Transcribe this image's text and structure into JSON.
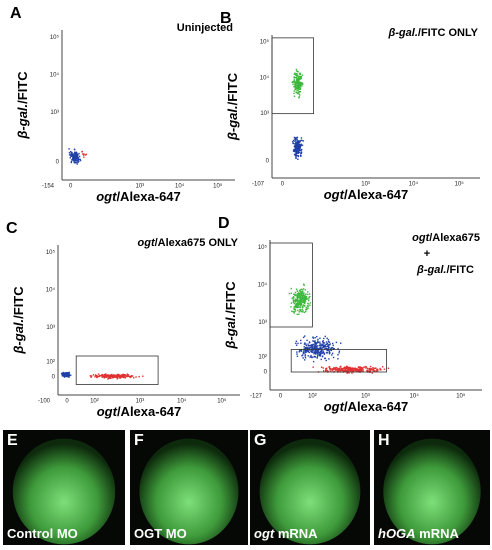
{
  "panels": [
    {
      "letter": "A",
      "title": [
        {
          "text": "Uninjected",
          "italic": false
        }
      ],
      "y_label": {
        "italic": "β-gal.",
        "rest": "/FITC"
      },
      "x_label": {
        "italic": "ogt",
        "rest": "/Alexa-647"
      },
      "yticks": [
        "10⁵",
        "10⁴",
        "10³",
        "0"
      ],
      "xticks": [
        "0",
        "10³",
        "10⁴",
        "10⁵"
      ],
      "corner": "-154"
    },
    {
      "letter": "B",
      "title": [
        {
          "text": "β-gal.",
          "italic": true
        },
        {
          "text": "/FITC ONLY",
          "italic": false
        }
      ],
      "y_label": {
        "italic": "β-gal.",
        "rest": "/FITC"
      },
      "x_label": {
        "italic": "ogt",
        "rest": "/Alexa-647"
      },
      "yticks": [
        "10⁵",
        "10⁴",
        "10³",
        "0"
      ],
      "xticks": [
        "0",
        "10³",
        "10⁴",
        "10⁵"
      ],
      "corner": "-107"
    },
    {
      "letter": "C",
      "title": [
        {
          "text": "ogt",
          "italic": true
        },
        {
          "text": "/Alexa675 ONLY",
          "italic": false
        }
      ],
      "y_label": {
        "italic": "β-gal.",
        "rest": "/FITC"
      },
      "x_label": {
        "italic": "ogt",
        "rest": "/Alexa-647"
      },
      "yticks": [
        "10⁵",
        "10⁴",
        "10³",
        "10²",
        "0"
      ],
      "xticks": [
        "0",
        "10²",
        "10³",
        "10⁴",
        "10⁵"
      ],
      "corner": "-100"
    },
    {
      "letter": "D",
      "title": [
        {
          "text": "ogt",
          "italic": true
        },
        {
          "text": "/Alexa675",
          "italic": false
        }
      ],
      "title2": "+",
      "title3": [
        {
          "text": "β-gal.",
          "italic": true
        },
        {
          "text": "/FITC",
          "italic": false
        }
      ],
      "y_label": {
        "italic": "β-gal.",
        "rest": "/FITC"
      },
      "x_label": {
        "italic": "ogt",
        "rest": "/Alexa-647"
      },
      "yticks": [
        "10⁵",
        "10⁴",
        "10³",
        "10²",
        "0"
      ],
      "xticks": [
        "0",
        "10²",
        "10³",
        "10⁴",
        "10⁵"
      ],
      "corner": "-127"
    }
  ],
  "images": [
    {
      "letter": "E",
      "caption": [
        {
          "text": "Control MO",
          "italic": false
        }
      ]
    },
    {
      "letter": "F",
      "caption": [
        {
          "text": "OGT MO",
          "italic": false
        }
      ]
    },
    {
      "letter": "G",
      "caption": [
        {
          "text": "ogt",
          "italic": true
        },
        {
          "text": " mRNA",
          "italic": false
        }
      ]
    },
    {
      "letter": "H",
      "caption": [
        {
          "text": "hOGA",
          "italic": true
        },
        {
          "text": " mRNA",
          "italic": false
        }
      ]
    }
  ]
}
